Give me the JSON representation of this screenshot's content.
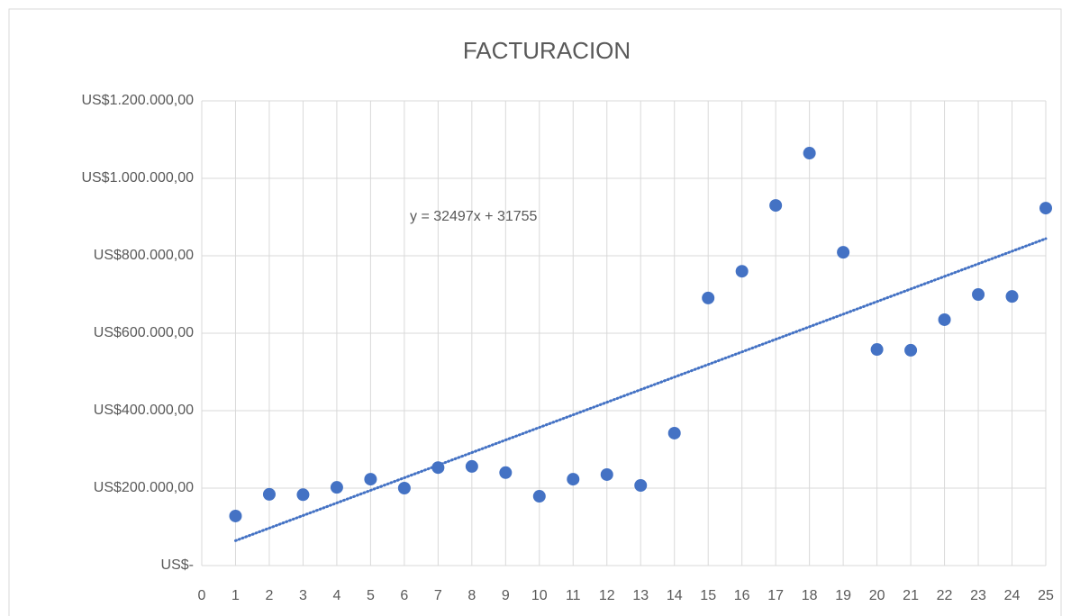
{
  "chart_data": {
    "type": "scatter",
    "title": "FACTURACION",
    "x": [
      1,
      2,
      3,
      4,
      5,
      6,
      7,
      8,
      9,
      10,
      11,
      12,
      13,
      14,
      15,
      16,
      17,
      18,
      19,
      20,
      21,
      22,
      23,
      24,
      25
    ],
    "series": [
      {
        "name": "FACTURACION",
        "color": "#4472c4",
        "values": [
          128000,
          184000,
          183000,
          202000,
          223000,
          200000,
          253000,
          256000,
          240000,
          179000,
          223000,
          235000,
          207000,
          342000,
          691000,
          760000,
          930000,
          1065000,
          809000,
          558000,
          556000,
          635000,
          700000,
          695000,
          923000
        ]
      }
    ],
    "trendline": {
      "slope": 32497,
      "intercept": 31755,
      "label": "y = 32497x + 31755",
      "color": "#4472c4"
    },
    "xlim": [
      0,
      25
    ],
    "xticks": [
      0,
      1,
      2,
      3,
      4,
      5,
      6,
      7,
      8,
      9,
      10,
      11,
      12,
      13,
      14,
      15,
      16,
      17,
      18,
      19,
      20,
      21,
      22,
      23,
      24,
      25
    ],
    "ylim": [
      0,
      1200000
    ],
    "yticks": [
      {
        "value": 0,
        "label": "US$-"
      },
      {
        "value": 200000,
        "label": "US$200.000,00"
      },
      {
        "value": 400000,
        "label": "US$400.000,00"
      },
      {
        "value": 600000,
        "label": "US$600.000,00"
      },
      {
        "value": 800000,
        "label": "US$800.000,00"
      },
      {
        "value": 1000000,
        "label": "US$1.000.000,00"
      },
      {
        "value": 1200000,
        "label": "US$1.200.000,00"
      }
    ],
    "grid": true
  }
}
